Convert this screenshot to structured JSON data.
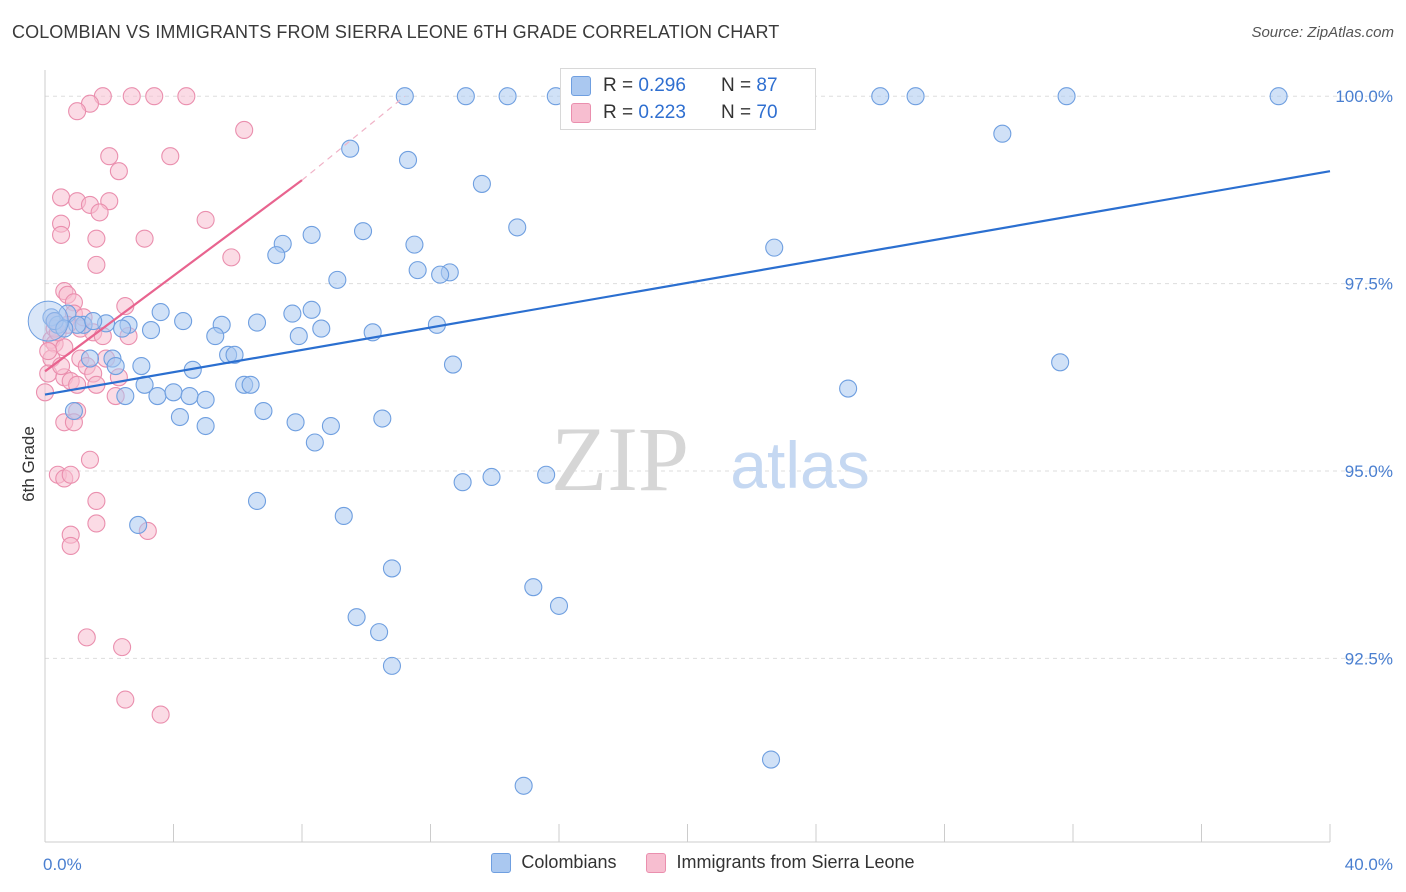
{
  "title": "COLOMBIAN VS IMMIGRANTS FROM SIERRA LEONE 6TH GRADE CORRELATION CHART",
  "source": "Source: ZipAtlas.com",
  "watermark": {
    "zip": "ZIP",
    "atlas": "atlas"
  },
  "legend_box": {
    "rows": [
      {
        "r_label": "R = ",
        "r_value": "0.296",
        "n_label": "N = ",
        "n_value": "87"
      },
      {
        "r_label": "R = ",
        "r_value": "0.223",
        "n_label": "N = ",
        "n_value": "70"
      }
    ]
  },
  "bottom_legend": [
    "Colombians",
    "Immigrants from Sierra Leone"
  ],
  "colors": {
    "blue_fill": "#aac8f0",
    "blue_stroke": "#6f9fe0",
    "blue_line": "#2b6fd0",
    "pink_fill": "#f7bed0",
    "pink_stroke": "#ea8fae",
    "pink_line": "#e8648f",
    "tick_label": "#4a7fd0",
    "grid": "#dddddd"
  },
  "chart_data": {
    "type": "scatter",
    "title": "COLOMBIAN VS IMMIGRANTS FROM SIERRA LEONE 6TH GRADE CORRELATION CHART",
    "xlabel": "",
    "ylabel": "6th Grade",
    "xlim": [
      0,
      40
    ],
    "ylim": [
      90.05,
      100.35
    ],
    "x_tick_labels": [
      "0.0%",
      "40.0%"
    ],
    "y_ticks": [
      92.5,
      95.0,
      97.5,
      100.0
    ],
    "y_tick_labels": [
      "92.5%",
      "95.0%",
      "97.5%",
      "100.0%"
    ],
    "grid": true,
    "legend_position": "top-center",
    "series": [
      {
        "name": "Colombians",
        "color": "#aac8f0",
        "R": 0.296,
        "N": 87,
        "trend": {
          "x": [
            0,
            40
          ],
          "y": [
            96.02,
            99.0
          ]
        },
        "points": [
          [
            11.2,
            100.0
          ],
          [
            13.1,
            100.0
          ],
          [
            14.4,
            100.0
          ],
          [
            15.9,
            100.0
          ],
          [
            23.6,
            100.0
          ],
          [
            26.0,
            100.0
          ],
          [
            27.1,
            100.0
          ],
          [
            31.8,
            100.0
          ],
          [
            38.4,
            100.0
          ],
          [
            29.8,
            99.5
          ],
          [
            9.5,
            99.3
          ],
          [
            11.3,
            99.15
          ],
          [
            13.6,
            98.83
          ],
          [
            14.7,
            98.25
          ],
          [
            9.9,
            98.2
          ],
          [
            8.3,
            98.15
          ],
          [
            11.5,
            98.02
          ],
          [
            7.4,
            98.03
          ],
          [
            22.7,
            97.98
          ],
          [
            7.2,
            97.88
          ],
          [
            11.6,
            97.68
          ],
          [
            12.6,
            97.65
          ],
          [
            12.3,
            97.62
          ],
          [
            9.1,
            97.55
          ],
          [
            0.2,
            97.05
          ],
          [
            0.4,
            96.95
          ],
          [
            0.7,
            97.1
          ],
          [
            1.2,
            96.95
          ],
          [
            1.9,
            96.97
          ],
          [
            2.6,
            96.95
          ],
          [
            3.6,
            97.12
          ],
          [
            4.3,
            97.0
          ],
          [
            5.5,
            96.95
          ],
          [
            6.6,
            96.98
          ],
          [
            7.7,
            97.1
          ],
          [
            8.3,
            97.15
          ],
          [
            2.4,
            96.9
          ],
          [
            3.3,
            96.88
          ],
          [
            5.3,
            96.8
          ],
          [
            7.9,
            96.8
          ],
          [
            10.2,
            96.85
          ],
          [
            12.2,
            96.95
          ],
          [
            1.4,
            96.5
          ],
          [
            2.1,
            96.5
          ],
          [
            5.7,
            96.55
          ],
          [
            5.9,
            96.55
          ],
          [
            3.0,
            96.4
          ],
          [
            4.6,
            96.35
          ],
          [
            12.7,
            96.42
          ],
          [
            31.6,
            96.45
          ],
          [
            6.2,
            96.15
          ],
          [
            6.4,
            96.15
          ],
          [
            3.1,
            96.15
          ],
          [
            3.5,
            96.0
          ],
          [
            4.0,
            96.05
          ],
          [
            4.5,
            96.0
          ],
          [
            0.9,
            95.8
          ],
          [
            2.5,
            96.0
          ],
          [
            4.2,
            95.72
          ],
          [
            5.0,
            95.6
          ],
          [
            6.8,
            95.8
          ],
          [
            7.8,
            95.65
          ],
          [
            8.9,
            95.6
          ],
          [
            10.5,
            95.7
          ],
          [
            8.4,
            95.38
          ],
          [
            25.0,
            96.1
          ],
          [
            13.0,
            94.85
          ],
          [
            13.9,
            94.92
          ],
          [
            15.6,
            94.95
          ],
          [
            6.6,
            94.6
          ],
          [
            9.3,
            94.4
          ],
          [
            2.9,
            94.28
          ],
          [
            10.8,
            93.7
          ],
          [
            15.2,
            93.45
          ],
          [
            16.0,
            93.2
          ],
          [
            9.7,
            93.05
          ],
          [
            10.4,
            92.85
          ],
          [
            10.8,
            92.4
          ],
          [
            22.6,
            91.15
          ],
          [
            14.9,
            90.8
          ],
          [
            0.3,
            97.0
          ],
          [
            1.0,
            96.95
          ],
          [
            0.6,
            96.9
          ],
          [
            1.5,
            97.0
          ],
          [
            2.2,
            96.4
          ],
          [
            5.0,
            95.95
          ],
          [
            8.6,
            96.9
          ]
        ]
      },
      {
        "name": "Immigrants from Sierra Leone",
        "color": "#f7bed0",
        "R": 0.223,
        "N": 70,
        "trend": {
          "x": [
            0,
            8.0
          ],
          "y": [
            96.33,
            98.88
          ]
        },
        "trend_dashed": {
          "x": [
            8.0,
            11.2
          ],
          "y": [
            98.88,
            100.0
          ]
        },
        "points": [
          [
            1.8,
            100.0
          ],
          [
            2.7,
            100.0
          ],
          [
            3.4,
            100.0
          ],
          [
            4.4,
            100.0
          ],
          [
            1.4,
            99.9
          ],
          [
            1.0,
            99.8
          ],
          [
            6.2,
            99.55
          ],
          [
            2.0,
            99.2
          ],
          [
            3.9,
            99.2
          ],
          [
            2.3,
            99.0
          ],
          [
            0.5,
            98.65
          ],
          [
            1.0,
            98.6
          ],
          [
            1.4,
            98.55
          ],
          [
            2.0,
            98.6
          ],
          [
            1.7,
            98.45
          ],
          [
            5.0,
            98.35
          ],
          [
            0.5,
            98.3
          ],
          [
            0.5,
            98.15
          ],
          [
            1.6,
            98.1
          ],
          [
            3.1,
            98.1
          ],
          [
            5.8,
            97.85
          ],
          [
            1.6,
            97.75
          ],
          [
            0.6,
            97.4
          ],
          [
            0.7,
            97.35
          ],
          [
            0.9,
            97.25
          ],
          [
            2.5,
            97.2
          ],
          [
            0.9,
            97.1
          ],
          [
            0.3,
            97.0
          ],
          [
            1.1,
            96.9
          ],
          [
            1.5,
            96.85
          ],
          [
            1.8,
            96.8
          ],
          [
            2.6,
            96.8
          ],
          [
            0.2,
            96.75
          ],
          [
            0.3,
            96.7
          ],
          [
            0.6,
            96.65
          ],
          [
            0.2,
            96.5
          ],
          [
            1.1,
            96.5
          ],
          [
            1.3,
            96.4
          ],
          [
            0.1,
            96.3
          ],
          [
            1.5,
            96.3
          ],
          [
            0.6,
            96.25
          ],
          [
            0.8,
            96.2
          ],
          [
            1.0,
            96.15
          ],
          [
            2.3,
            96.25
          ],
          [
            0.0,
            96.05
          ],
          [
            1.0,
            95.8
          ],
          [
            0.6,
            95.65
          ],
          [
            0.9,
            95.65
          ],
          [
            1.4,
            95.15
          ],
          [
            0.4,
            94.95
          ],
          [
            0.6,
            94.9
          ],
          [
            0.8,
            94.95
          ],
          [
            1.6,
            94.6
          ],
          [
            1.6,
            94.3
          ],
          [
            0.8,
            94.15
          ],
          [
            0.8,
            94.0
          ],
          [
            3.2,
            94.2
          ],
          [
            1.3,
            92.78
          ],
          [
            2.4,
            92.65
          ],
          [
            2.5,
            91.95
          ],
          [
            3.6,
            91.75
          ],
          [
            0.3,
            96.9
          ],
          [
            1.2,
            97.05
          ],
          [
            0.4,
            96.85
          ],
          [
            0.7,
            96.95
          ],
          [
            1.9,
            96.5
          ],
          [
            0.5,
            96.4
          ],
          [
            1.6,
            96.15
          ],
          [
            2.2,
            96.0
          ],
          [
            0.1,
            96.6
          ]
        ]
      }
    ]
  }
}
